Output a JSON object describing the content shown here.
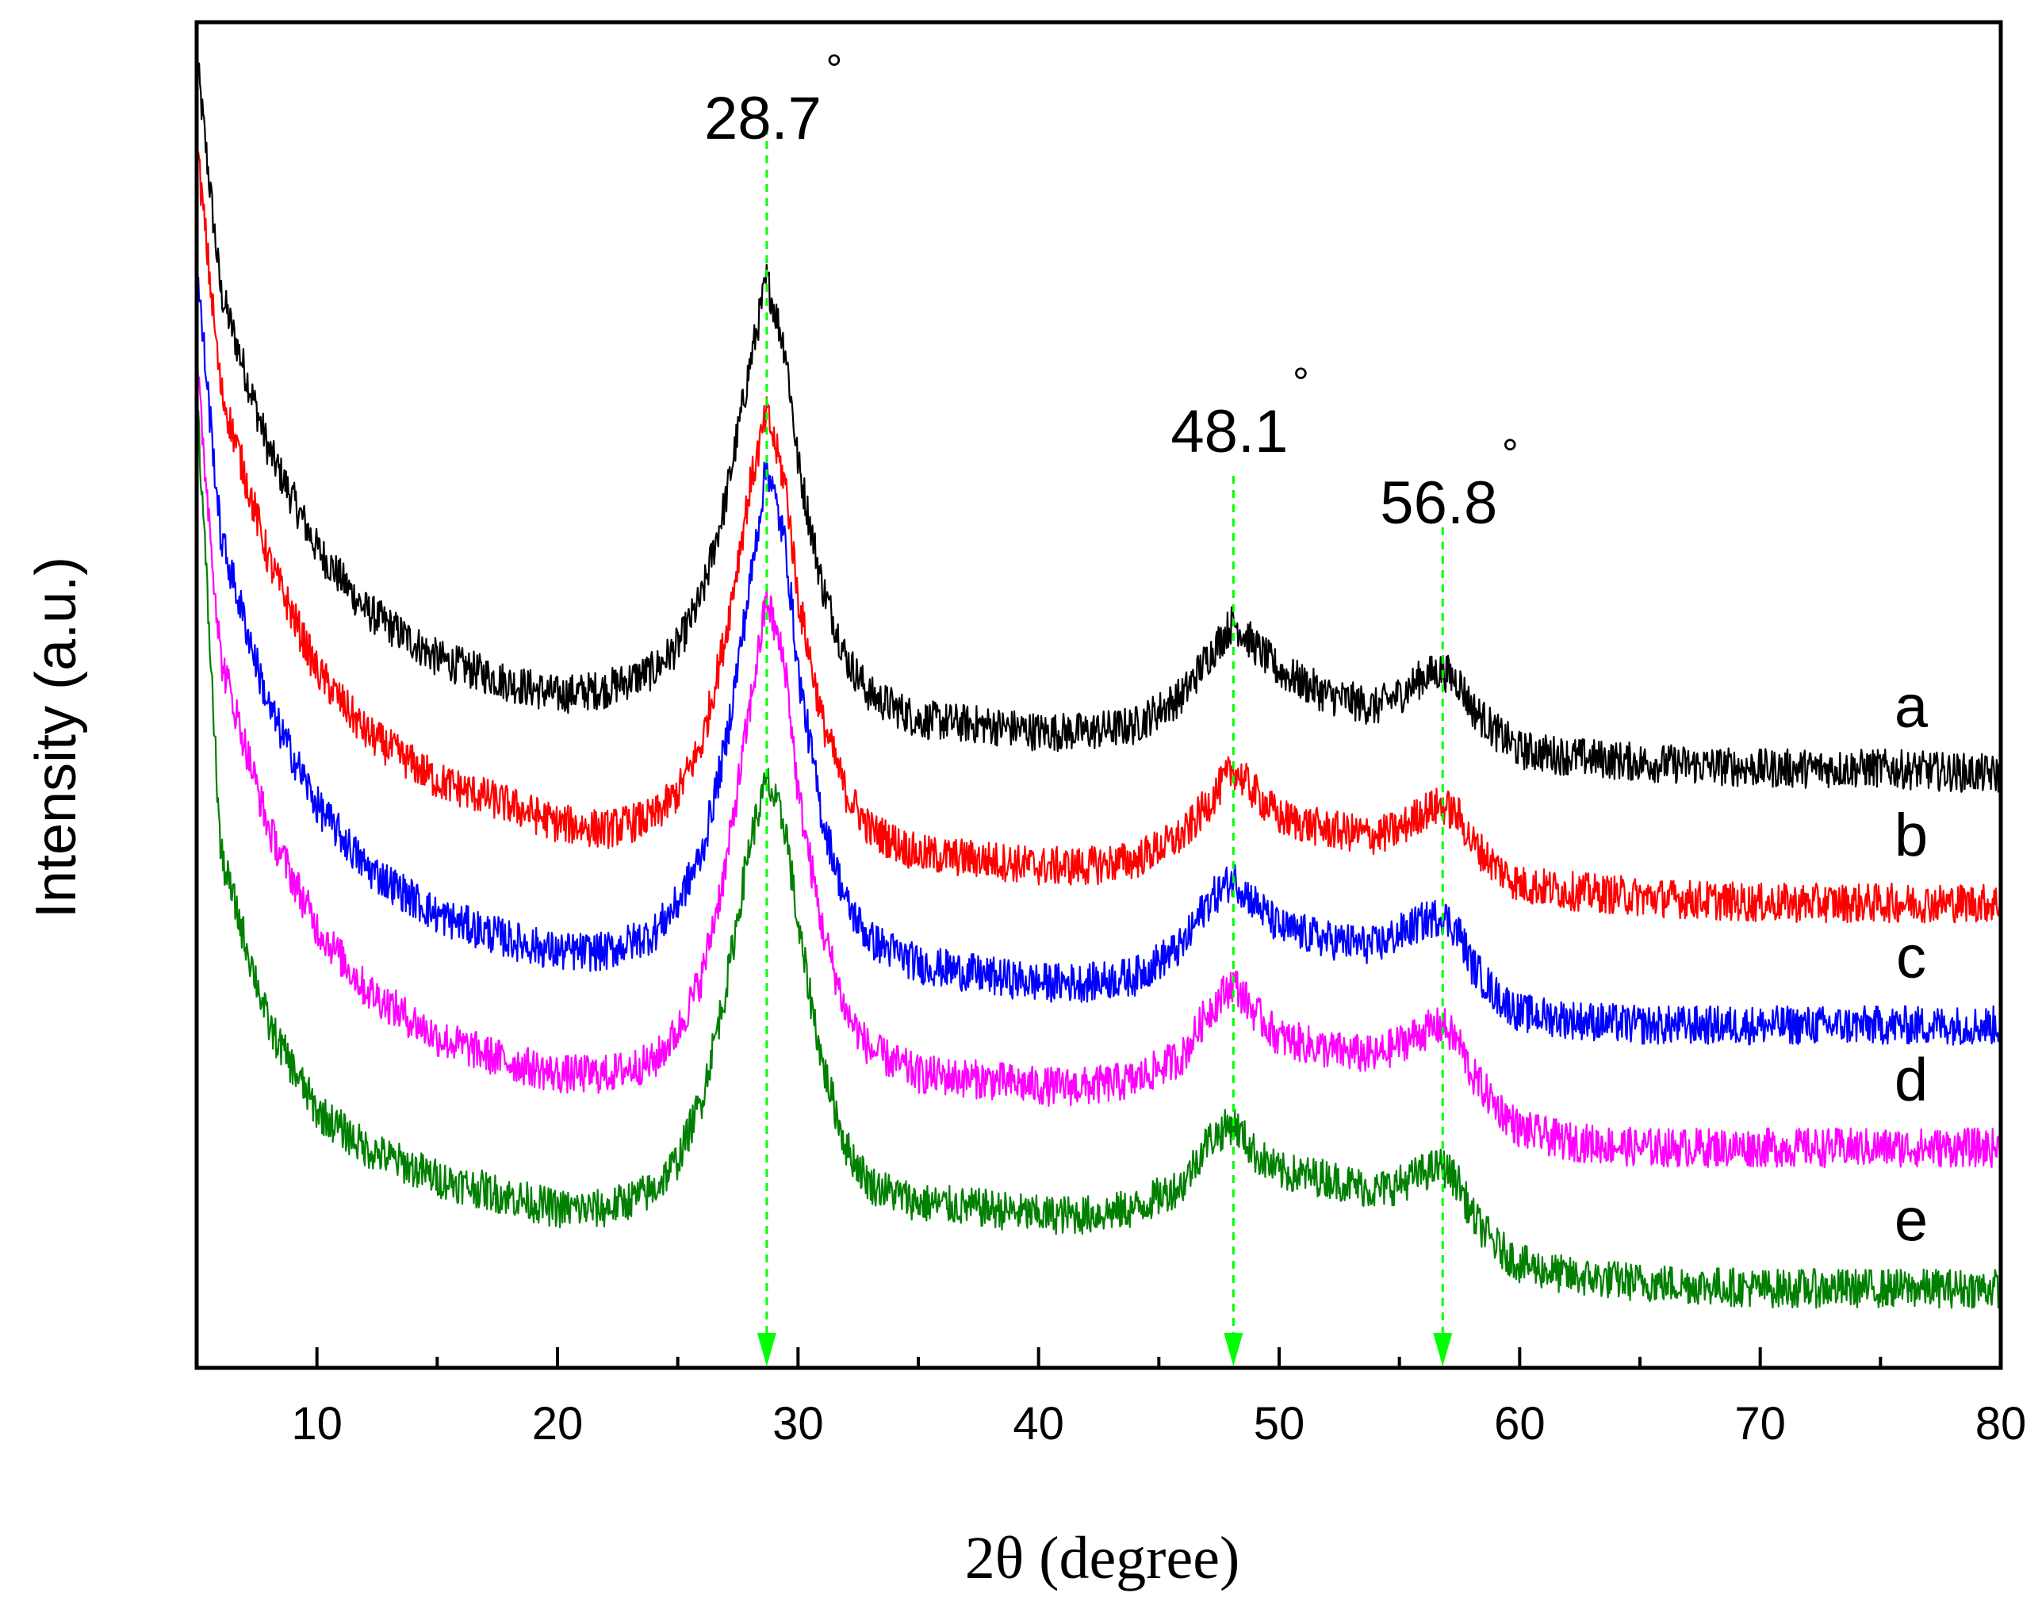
{
  "chart_data": {
    "type": "line",
    "title": "",
    "xlabel": "2θ (degree)",
    "ylabel": "Intensity (a.u.)",
    "xlim": [
      5,
      80
    ],
    "ylim": [
      0,
      110
    ],
    "x_ticks": [
      10,
      20,
      30,
      40,
      50,
      60,
      70,
      80
    ],
    "x_tick_labels": [
      "10",
      "20",
      "30",
      "40",
      "50",
      "60",
      "70",
      "80"
    ],
    "grid": false,
    "peak_markers": [
      {
        "x": 28.7,
        "label": "28.7",
        "degree_symbol": "°",
        "color": "#00ff00"
      },
      {
        "x": 48.1,
        "label": "48.1",
        "degree_symbol": "°",
        "color": "#00ff00"
      },
      {
        "x": 56.8,
        "label": "56.8",
        "degree_symbol": "°",
        "color": "#00ff00"
      }
    ],
    "series": [
      {
        "name": "a",
        "color": "#000000",
        "x": [
          5,
          6,
          8,
          10,
          12,
          15,
          18,
          20,
          22,
          24,
          25,
          26,
          27,
          28,
          28.7,
          29.5,
          30,
          31,
          32,
          33,
          35,
          38,
          40,
          42,
          44,
          46,
          47,
          48.1,
          49,
          50,
          52,
          54,
          55,
          56,
          56.8,
          57.5,
          58,
          59,
          60,
          62,
          65,
          70,
          75,
          80
        ],
        "values": [
          107,
          88,
          75,
          67,
          62,
          58,
          56,
          55,
          55.5,
          57,
          59,
          63,
          71,
          82,
          89,
          83,
          74,
          64,
          58,
          55,
          53,
          52.5,
          52,
          52,
          52.5,
          55,
          58,
          61,
          59,
          57,
          55,
          54,
          55,
          56.5,
          57,
          56,
          54,
          52,
          50.5,
          50,
          49.5,
          49,
          49,
          48.5
        ]
      },
      {
        "name": "b",
        "color": "#ff0000",
        "x": [
          5,
          6,
          8,
          10,
          12,
          15,
          18,
          20,
          22,
          24,
          25,
          26,
          27,
          28,
          28.7,
          29.5,
          30,
          31,
          32,
          33,
          35,
          38,
          40,
          42,
          44,
          46,
          47,
          48.1,
          49,
          50,
          52,
          54,
          55,
          56,
          56.8,
          57.5,
          58,
          59,
          60,
          62,
          65,
          70,
          75,
          80
        ],
        "values": [
          100,
          80,
          66,
          57,
          52,
          48,
          46,
          44.5,
          44,
          45,
          47,
          51,
          60,
          72,
          78,
          72,
          63,
          53,
          47,
          44,
          42,
          41.5,
          41,
          41,
          41.5,
          43.5,
          46,
          49,
          47,
          45,
          44,
          43.5,
          44,
          45.5,
          46,
          45,
          43,
          41,
          39.5,
          39,
          38.5,
          38,
          38,
          38
        ]
      },
      {
        "name": "c",
        "color": "#0000ff",
        "x": [
          5,
          6,
          8,
          10,
          12,
          15,
          18,
          20,
          22,
          24,
          25,
          26,
          27,
          28,
          28.7,
          29.5,
          30,
          31,
          32,
          33,
          35,
          38,
          40,
          42,
          44,
          46,
          47,
          48.1,
          49,
          50,
          52,
          54,
          55,
          56,
          56.8,
          57.5,
          58,
          59,
          60,
          62,
          65,
          70,
          75,
          80
        ],
        "values": [
          90,
          68,
          54,
          46,
          41,
          37,
          35,
          34,
          34,
          35.5,
          38,
          42,
          51,
          64,
          74,
          67,
          57,
          45,
          38,
          35,
          33,
          32,
          31.5,
          31.5,
          32,
          34.5,
          38,
          40,
          38,
          36,
          35,
          34.5,
          35.5,
          36.5,
          37,
          35.5,
          33,
          30.5,
          29,
          28.5,
          28,
          28,
          28,
          28
        ]
      },
      {
        "name": "d",
        "color": "#ff00ff",
        "x": [
          5,
          6,
          8,
          10,
          12,
          15,
          18,
          20,
          22,
          24,
          25,
          26,
          27,
          28,
          28.7,
          29.5,
          30,
          31,
          32,
          33,
          35,
          38,
          40,
          42,
          44,
          46,
          47,
          48.1,
          49,
          50,
          52,
          54,
          55,
          56,
          56.8,
          57.5,
          58,
          59,
          60,
          62,
          65,
          70,
          75,
          80
        ],
        "values": [
          82,
          58,
          44,
          36,
          31,
          27,
          25,
          24,
          24,
          25,
          27.5,
          32,
          41,
          54,
          63,
          57,
          47,
          36,
          29,
          26,
          24,
          23.5,
          23,
          23,
          23.5,
          25.5,
          29,
          31.5,
          29,
          27,
          26,
          25.5,
          26.5,
          27.5,
          28,
          26.5,
          24,
          21.5,
          19.5,
          18.5,
          18,
          18,
          18,
          18
        ]
      },
      {
        "name": "e",
        "color": "#008000",
        "x": [
          5,
          6,
          8,
          10,
          12,
          15,
          18,
          20,
          22,
          24,
          25,
          26,
          27,
          28,
          28.7,
          29.5,
          30,
          31,
          32,
          33,
          35,
          38,
          40,
          42,
          44,
          46,
          47,
          48.1,
          49,
          50,
          52,
          54,
          55,
          56,
          56.8,
          57.5,
          58,
          59,
          60,
          62,
          65,
          70,
          75,
          80
        ],
        "values": [
          80,
          42,
          28,
          21,
          18,
          15.5,
          14,
          13,
          13,
          14.5,
          17,
          22,
          31,
          43,
          48,
          44,
          36,
          25,
          18,
          15,
          13.5,
          13,
          12.5,
          12.5,
          13,
          15,
          18.5,
          20,
          17.5,
          16,
          15.5,
          14.5,
          15,
          16,
          16.5,
          15,
          12.5,
          10,
          8.5,
          7.5,
          7,
          6.5,
          6.5,
          6.5
        ]
      }
    ]
  }
}
